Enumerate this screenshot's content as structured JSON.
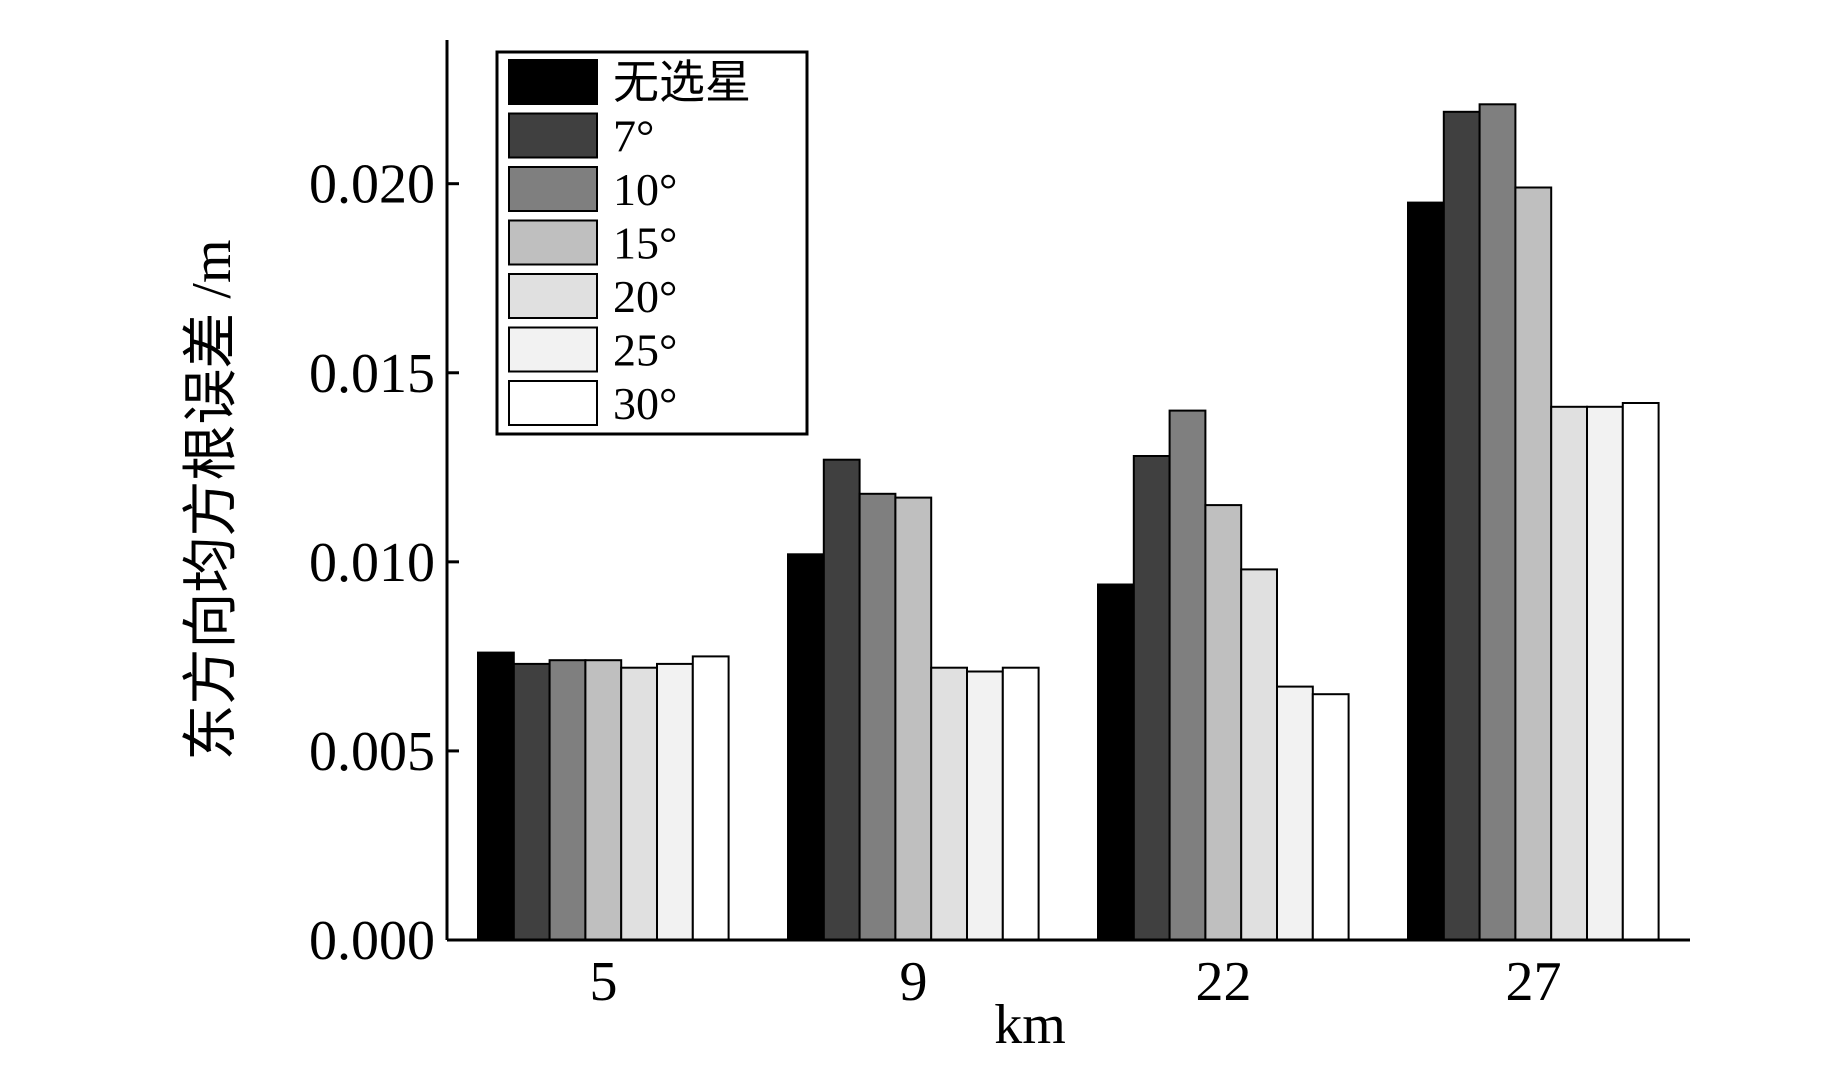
{
  "chart_data": {
    "type": "bar",
    "title": "",
    "xlabel": "km",
    "ylabel": "东方向均方根误差 /m",
    "categories": [
      "5",
      "9",
      "22",
      "27"
    ],
    "ylim": [
      0,
      0.0238
    ],
    "yticks": [
      "0.000",
      "0.005",
      "0.010",
      "0.015",
      "0.020"
    ],
    "grid": false,
    "legend_position": "top-left",
    "series": [
      {
        "name": "无选星",
        "color": "#000000",
        "values": [
          0.0076,
          0.0102,
          0.0094,
          0.0195
        ]
      },
      {
        "name": "7°",
        "color": "#404040",
        "values": [
          0.0073,
          0.0127,
          0.0128,
          0.0219
        ]
      },
      {
        "name": "10°",
        "color": "#7f7f7f",
        "values": [
          0.0074,
          0.0118,
          0.014,
          0.0221
        ]
      },
      {
        "name": "15°",
        "color": "#bfbfbf",
        "values": [
          0.0074,
          0.0117,
          0.0115,
          0.0199
        ]
      },
      {
        "name": "20°",
        "color": "#e0e0e0",
        "values": [
          0.0072,
          0.0072,
          0.0098,
          0.0141
        ]
      },
      {
        "name": "25°",
        "color": "#f2f2f2",
        "values": [
          0.0073,
          0.0071,
          0.0067,
          0.0141
        ]
      },
      {
        "name": "30°",
        "color": "#ffffff",
        "values": [
          0.0075,
          0.0072,
          0.0065,
          0.0142
        ]
      }
    ]
  }
}
